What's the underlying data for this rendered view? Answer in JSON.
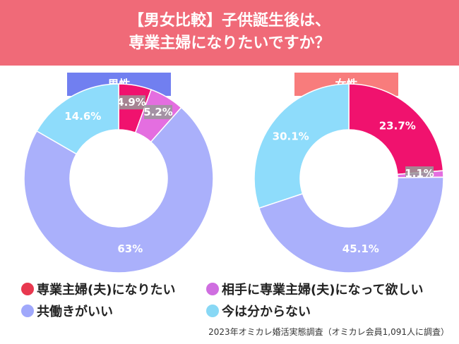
{
  "header": {
    "line1": "【男女比較】子供誕生後は、",
    "line2": "専業主婦になりたいですか？"
  },
  "colors": {
    "header": "#f06a78",
    "male_tag": "#717ff0",
    "female_tag": "#f87c7c"
  },
  "chart_data": [
    {
      "type": "pie",
      "title": "男性",
      "categories": [
        "専業主婦(夫)になりたい",
        "相手に専業主婦(夫)になって欲しい",
        "共働きがいい",
        "今は分からない"
      ],
      "values": [
        4.9,
        5.2,
        63,
        14.6
      ],
      "labels": [
        "4.9%",
        "5.2%",
        "63%",
        "14.6%"
      ],
      "colors": [
        "#f0126e",
        "#e46ee0",
        "#aab0fb",
        "#8edcfb"
      ]
    },
    {
      "type": "pie",
      "title": "女性",
      "categories": [
        "専業主婦(夫)になりたい",
        "相手に専業主婦(夫)になって欲しい",
        "共働きがいい",
        "今は分からない"
      ],
      "values": [
        23.7,
        1.1,
        45.1,
        30.1
      ],
      "labels": [
        "23.7%",
        "1.1%",
        "45.1%",
        "30.1%"
      ],
      "colors": [
        "#f0126e",
        "#e46ee0",
        "#aab0fb",
        "#8edcfb"
      ]
    }
  ],
  "legend": [
    {
      "label": "専業主婦(夫)になりたい",
      "color": "#e8384f"
    },
    {
      "label": "相手に専業主婦(夫)になって欲しい",
      "color": "#cf6ee0"
    },
    {
      "label": "共働きがいい",
      "color": "#a0a8fb"
    },
    {
      "label": "今は分からない",
      "color": "#88d8f5"
    }
  ],
  "source": "2023年オミカレ婚活実態調査（オミカレ会員1,091人に調査）"
}
